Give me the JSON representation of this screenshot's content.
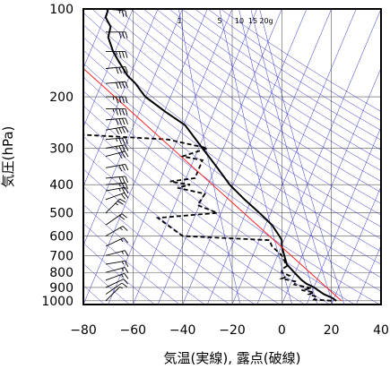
{
  "chart_data": {
    "type": "line",
    "title": "",
    "xlabel": "気温(実線), 露点(破線)",
    "ylabel": "気圧(hPa)",
    "x_range": [
      -80,
      40
    ],
    "x_ticks": [
      -80,
      -60,
      -40,
      -20,
      0,
      20,
      40
    ],
    "y_range": [
      1030,
      100
    ],
    "y_scale": "log",
    "y_ticks": [
      100,
      200,
      300,
      400,
      500,
      600,
      700,
      800,
      900,
      1000
    ],
    "mixing_ratio_labels": [
      "1",
      "5",
      "10",
      "15",
      "20g"
    ],
    "mixing_ratio_values": [
      1,
      5,
      10,
      15,
      20
    ],
    "colors": {
      "isotherm": "#3333cc",
      "temperature": "#000000",
      "dewpoint": "#000000",
      "reference": "#ff2020",
      "wind": "#000000"
    },
    "series": [
      {
        "style": "solid",
        "points": [
          [
            22,
            1000
          ],
          [
            20,
            975
          ],
          [
            17,
            950
          ],
          [
            15,
            925
          ],
          [
            13,
            900
          ],
          [
            10,
            875
          ],
          [
            8,
            850
          ],
          [
            5,
            800
          ],
          [
            2,
            750
          ],
          [
            1,
            700
          ],
          [
            0,
            650
          ],
          [
            0,
            620
          ],
          [
            -1,
            600
          ],
          [
            -4,
            550
          ],
          [
            -9,
            500
          ],
          [
            -15,
            450
          ],
          [
            -21,
            400
          ],
          [
            -26,
            350
          ],
          [
            -32,
            300
          ],
          [
            -39,
            250
          ],
          [
            -47,
            225
          ],
          [
            -55,
            200
          ],
          [
            -57,
            190
          ],
          [
            -59,
            180
          ],
          [
            -62,
            170
          ],
          [
            -66,
            150
          ],
          [
            -68,
            140
          ],
          [
            -70,
            125
          ],
          [
            -69,
            115
          ],
          [
            -71,
            107
          ],
          [
            -70,
            100
          ]
        ]
      },
      {
        "style": "dashed",
        "points": [
          [
            20,
            1000
          ],
          [
            13,
            990
          ],
          [
            14,
            970
          ],
          [
            11,
            950
          ],
          [
            13,
            935
          ],
          [
            8,
            920
          ],
          [
            12,
            905
          ],
          [
            5,
            880
          ],
          [
            6,
            860
          ],
          [
            0,
            840
          ],
          [
            3,
            820
          ],
          [
            0,
            800
          ],
          [
            0,
            780
          ],
          [
            2,
            760
          ],
          [
            0,
            700
          ],
          [
            -4,
            650
          ],
          [
            -5,
            620
          ],
          [
            -40,
            600
          ],
          [
            -50,
            520
          ],
          [
            -26,
            500
          ],
          [
            -34,
            470
          ],
          [
            -31,
            430
          ],
          [
            -42,
            410
          ],
          [
            -37,
            400
          ],
          [
            -45,
            390
          ],
          [
            -35,
            380
          ],
          [
            -32,
            330
          ],
          [
            -40,
            320
          ],
          [
            -30,
            300
          ],
          [
            -46,
            280
          ],
          [
            -80,
            270
          ]
        ]
      },
      {
        "style": "reference",
        "points": [
          [
            24,
            1000
          ],
          [
            -80,
            160
          ]
        ]
      }
    ],
    "wind_barbs": [
      {
        "p": 1000,
        "dir": 225,
        "kt": 5
      },
      {
        "p": 950,
        "dir": 235,
        "kt": 10
      },
      {
        "p": 900,
        "dir": 245,
        "kt": 10
      },
      {
        "p": 850,
        "dir": 250,
        "kt": 15
      },
      {
        "p": 800,
        "dir": 255,
        "kt": 15
      },
      {
        "p": 750,
        "dir": 260,
        "kt": 15
      },
      {
        "p": 700,
        "dir": 255,
        "kt": 15
      },
      {
        "p": 650,
        "dir": 245,
        "kt": 15
      },
      {
        "p": 600,
        "dir": 240,
        "kt": 15
      },
      {
        "p": 550,
        "dir": 235,
        "kt": 20
      },
      {
        "p": 500,
        "dir": 225,
        "kt": 25
      },
      {
        "p": 450,
        "dir": 250,
        "kt": 20
      },
      {
        "p": 420,
        "dir": 260,
        "kt": 25
      },
      {
        "p": 400,
        "dir": 265,
        "kt": 25
      },
      {
        "p": 380,
        "dir": 265,
        "kt": 30
      },
      {
        "p": 350,
        "dir": 260,
        "kt": 30
      },
      {
        "p": 320,
        "dir": 255,
        "kt": 30
      },
      {
        "p": 300,
        "dir": 260,
        "kt": 35
      },
      {
        "p": 280,
        "dir": 265,
        "kt": 35
      },
      {
        "p": 260,
        "dir": 260,
        "kt": 40
      },
      {
        "p": 240,
        "dir": 265,
        "kt": 40
      },
      {
        "p": 220,
        "dir": 270,
        "kt": 45
      },
      {
        "p": 200,
        "dir": 270,
        "kt": 45
      },
      {
        "p": 180,
        "dir": 265,
        "kt": 40
      },
      {
        "p": 160,
        "dir": 265,
        "kt": 40
      },
      {
        "p": 140,
        "dir": 270,
        "kt": 35
      },
      {
        "p": 120,
        "dir": 270,
        "kt": 30
      },
      {
        "p": 100,
        "dir": 275,
        "kt": 25
      }
    ]
  }
}
